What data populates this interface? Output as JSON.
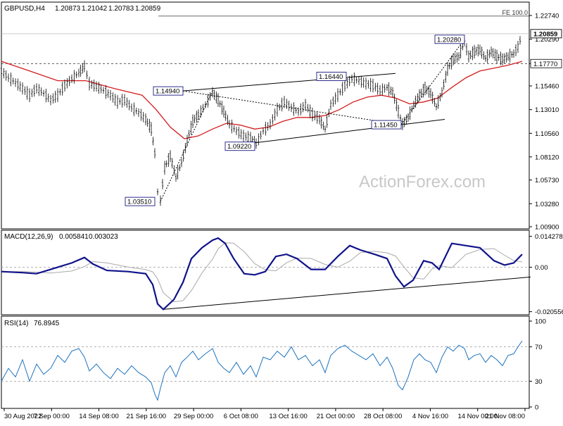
{
  "chart_data": [
    {
      "type": "line",
      "panel": "price",
      "header": {
        "symbol": "GBPUSD,H4",
        "open": "1.20873",
        "high": "1.21042",
        "low": "1.20783",
        "close": "1.20859"
      },
      "watermark": "ActionForex.com",
      "x_ticks": [
        "30 Aug 2022",
        "7 Sep 00:00",
        "14 Sep 08:00",
        "21 Sep 16:00",
        "29 Sep 00:00",
        "6 Oct 08:00",
        "13 Oct 16:00",
        "21 Oct 00:00",
        "28 Oct 08:00",
        "4 Nov 16:00",
        "14 Nov 00:00",
        "21 Nov 08:00"
      ],
      "y_ticks": [
        "1.22740",
        "1.20290",
        "1.17770",
        "1.15460",
        "1.13010",
        "1.10560",
        "1.08120",
        "1.05730",
        "1.03280",
        "1.00900"
      ],
      "ylim": [
        1.009,
        1.2274
      ],
      "current_price": "1.20859",
      "levels": [
        {
          "label": "FE 100.0",
          "value": 1.2268,
          "style": "solid"
        },
        {
          "label": "1.17770",
          "value": 1.1777,
          "style": "dashed"
        }
      ],
      "price_series": [
        {
          "t": 0,
          "v": 1.17
        },
        {
          "t": 10,
          "v": 1.163
        },
        {
          "t": 20,
          "v": 1.158
        },
        {
          "t": 30,
          "v": 1.152
        },
        {
          "t": 40,
          "v": 1.145
        },
        {
          "t": 50,
          "v": 1.152
        },
        {
          "t": 60,
          "v": 1.147
        },
        {
          "t": 70,
          "v": 1.14
        },
        {
          "t": 80,
          "v": 1.145
        },
        {
          "t": 90,
          "v": 1.155
        },
        {
          "t": 100,
          "v": 1.162
        },
        {
          "t": 110,
          "v": 1.168
        },
        {
          "t": 118,
          "v": 1.175
        },
        {
          "t": 125,
          "v": 1.157
        },
        {
          "t": 135,
          "v": 1.154
        },
        {
          "t": 145,
          "v": 1.15
        },
        {
          "t": 155,
          "v": 1.145
        },
        {
          "t": 165,
          "v": 1.138
        },
        {
          "t": 175,
          "v": 1.14
        },
        {
          "t": 185,
          "v": 1.132
        },
        {
          "t": 195,
          "v": 1.127
        },
        {
          "t": 205,
          "v": 1.12
        },
        {
          "t": 213,
          "v": 1.11
        },
        {
          "t": 218,
          "v": 1.085
        },
        {
          "t": 222,
          "v": 1.045
        },
        {
          "t": 226,
          "v": 1.036
        },
        {
          "t": 232,
          "v": 1.07
        },
        {
          "t": 240,
          "v": 1.082
        },
        {
          "t": 248,
          "v": 1.06
        },
        {
          "t": 256,
          "v": 1.075
        },
        {
          "t": 264,
          "v": 1.098
        },
        {
          "t": 272,
          "v": 1.118
        },
        {
          "t": 280,
          "v": 1.125
        },
        {
          "t": 290,
          "v": 1.135
        },
        {
          "t": 300,
          "v": 1.148
        },
        {
          "t": 308,
          "v": 1.14
        },
        {
          "t": 316,
          "v": 1.128
        },
        {
          "t": 324,
          "v": 1.115
        },
        {
          "t": 334,
          "v": 1.108
        },
        {
          "t": 344,
          "v": 1.103
        },
        {
          "t": 354,
          "v": 1.1
        },
        {
          "t": 362,
          "v": 1.095
        },
        {
          "t": 372,
          "v": 1.108
        },
        {
          "t": 382,
          "v": 1.115
        },
        {
          "t": 392,
          "v": 1.13
        },
        {
          "t": 402,
          "v": 1.138
        },
        {
          "t": 412,
          "v": 1.132
        },
        {
          "t": 422,
          "v": 1.128
        },
        {
          "t": 432,
          "v": 1.135
        },
        {
          "t": 442,
          "v": 1.125
        },
        {
          "t": 452,
          "v": 1.12
        },
        {
          "t": 460,
          "v": 1.11
        },
        {
          "t": 468,
          "v": 1.135
        },
        {
          "t": 478,
          "v": 1.145
        },
        {
          "t": 488,
          "v": 1.155
        },
        {
          "t": 498,
          "v": 1.162
        },
        {
          "t": 508,
          "v": 1.16
        },
        {
          "t": 518,
          "v": 1.157
        },
        {
          "t": 528,
          "v": 1.155
        },
        {
          "t": 538,
          "v": 1.15
        },
        {
          "t": 548,
          "v": 1.153
        },
        {
          "t": 556,
          "v": 1.148
        },
        {
          "t": 564,
          "v": 1.128
        },
        {
          "t": 570,
          "v": 1.115
        },
        {
          "t": 578,
          "v": 1.122
        },
        {
          "t": 586,
          "v": 1.135
        },
        {
          "t": 594,
          "v": 1.145
        },
        {
          "t": 602,
          "v": 1.152
        },
        {
          "t": 610,
          "v": 1.147
        },
        {
          "t": 618,
          "v": 1.133
        },
        {
          "t": 626,
          "v": 1.148
        },
        {
          "t": 634,
          "v": 1.172
        },
        {
          "t": 642,
          "v": 1.182
        },
        {
          "t": 650,
          "v": 1.185
        },
        {
          "t": 658,
          "v": 1.2
        },
        {
          "t": 664,
          "v": 1.185
        },
        {
          "t": 672,
          "v": 1.19
        },
        {
          "t": 680,
          "v": 1.192
        },
        {
          "t": 688,
          "v": 1.183
        },
        {
          "t": 696,
          "v": 1.19
        },
        {
          "t": 704,
          "v": 1.185
        },
        {
          "t": 712,
          "v": 1.182
        },
        {
          "t": 720,
          "v": 1.185
        },
        {
          "t": 728,
          "v": 1.188
        },
        {
          "t": 734,
          "v": 1.195
        },
        {
          "t": 740,
          "v": 1.2086
        }
      ],
      "moving_average": [
        {
          "t": 0,
          "v": 1.18
        },
        {
          "t": 40,
          "v": 1.17
        },
        {
          "t": 80,
          "v": 1.16
        },
        {
          "t": 120,
          "v": 1.16
        },
        {
          "t": 160,
          "v": 1.152
        },
        {
          "t": 200,
          "v": 1.145
        },
        {
          "t": 220,
          "v": 1.13
        },
        {
          "t": 240,
          "v": 1.112
        },
        {
          "t": 260,
          "v": 1.1
        },
        {
          "t": 280,
          "v": 1.103
        },
        {
          "t": 300,
          "v": 1.11
        },
        {
          "t": 320,
          "v": 1.116
        },
        {
          "t": 340,
          "v": 1.114
        },
        {
          "t": 360,
          "v": 1.11
        },
        {
          "t": 380,
          "v": 1.112
        },
        {
          "t": 400,
          "v": 1.118
        },
        {
          "t": 420,
          "v": 1.122
        },
        {
          "t": 440,
          "v": 1.122
        },
        {
          "t": 460,
          "v": 1.124
        },
        {
          "t": 480,
          "v": 1.13
        },
        {
          "t": 500,
          "v": 1.138
        },
        {
          "t": 520,
          "v": 1.143
        },
        {
          "t": 540,
          "v": 1.145
        },
        {
          "t": 560,
          "v": 1.142
        },
        {
          "t": 580,
          "v": 1.136
        },
        {
          "t": 600,
          "v": 1.138
        },
        {
          "t": 620,
          "v": 1.142
        },
        {
          "t": 640,
          "v": 1.153
        },
        {
          "t": 660,
          "v": 1.163
        },
        {
          "t": 680,
          "v": 1.17
        },
        {
          "t": 700,
          "v": 1.173
        },
        {
          "t": 720,
          "v": 1.176
        },
        {
          "t": 740,
          "v": 1.18
        }
      ],
      "trendlines": [
        {
          "from": {
            "t": 258,
            "v": 1.1494
          },
          "to": {
            "t": 560,
            "v": 1.1675
          },
          "style": "solid"
        },
        {
          "from": {
            "t": 320,
            "v": 1.0922
          },
          "to": {
            "t": 630,
            "v": 1.12
          },
          "style": "solid"
        },
        {
          "from": {
            "t": 258,
            "v": 1.1494
          },
          "to": {
            "t": 568,
            "v": 1.1145
          },
          "style": "dashed"
        },
        {
          "from": {
            "t": 226,
            "v": 1.0351
          },
          "to": {
            "t": 300,
            "v": 1.1494
          },
          "style": "dashed"
        },
        {
          "from": {
            "t": 568,
            "v": 1.1145
          },
          "to": {
            "t": 658,
            "v": 1.2028
          },
          "style": "dashed"
        }
      ],
      "annotations": [
        {
          "label": "1.14940",
          "t": 258,
          "v": 1.1494,
          "anchor": "right"
        },
        {
          "label": "1.16440",
          "t": 490,
          "v": 1.1644,
          "anchor": "right"
        },
        {
          "label": "1.09220",
          "t": 360,
          "v": 1.0922,
          "anchor": "right"
        },
        {
          "label": "1.11450",
          "t": 568,
          "v": 1.1145,
          "anchor": "right"
        },
        {
          "label": "1.03510",
          "t": 218,
          "v": 1.0351,
          "anchor": "right"
        },
        {
          "label": "1.20280",
          "t": 658,
          "v": 1.2028,
          "anchor": "right"
        }
      ]
    },
    {
      "type": "line",
      "panel": "macd",
      "header": {
        "name": "MACD(12,26,9)",
        "main": "0.005841",
        "signal": "0.003023"
      },
      "y_ticks": [
        "0.014278",
        "0.00",
        "-0.020556"
      ],
      "ylim": [
        -0.021,
        0.0145
      ],
      "zero_line": 0.0,
      "macd_series": [
        {
          "t": 0,
          "v": -0.002
        },
        {
          "t": 30,
          "v": -0.0025
        },
        {
          "t": 50,
          "v": -0.003
        },
        {
          "t": 70,
          "v": -0.001
        },
        {
          "t": 100,
          "v": 0.002
        },
        {
          "t": 118,
          "v": 0.0045
        },
        {
          "t": 130,
          "v": 0.0015
        },
        {
          "t": 150,
          "v": -0.0015
        },
        {
          "t": 180,
          "v": -0.002
        },
        {
          "t": 205,
          "v": -0.003
        },
        {
          "t": 215,
          "v": -0.008
        },
        {
          "t": 222,
          "v": -0.017
        },
        {
          "t": 230,
          "v": -0.0195
        },
        {
          "t": 245,
          "v": -0.015
        },
        {
          "t": 258,
          "v": -0.007
        },
        {
          "t": 270,
          "v": 0.004
        },
        {
          "t": 285,
          "v": 0.009
        },
        {
          "t": 300,
          "v": 0.0125
        },
        {
          "t": 308,
          "v": 0.0135
        },
        {
          "t": 318,
          "v": 0.011
        },
        {
          "t": 330,
          "v": 0.004
        },
        {
          "t": 345,
          "v": -0.003
        },
        {
          "t": 360,
          "v": -0.0035
        },
        {
          "t": 375,
          "v": -0.002
        },
        {
          "t": 390,
          "v": 0.005
        },
        {
          "t": 405,
          "v": 0.006
        },
        {
          "t": 420,
          "v": 0.004
        },
        {
          "t": 440,
          "v": -0.001
        },
        {
          "t": 460,
          "v": -0.001
        },
        {
          "t": 478,
          "v": 0.005
        },
        {
          "t": 495,
          "v": 0.01
        },
        {
          "t": 510,
          "v": 0.008
        },
        {
          "t": 530,
          "v": 0.006
        },
        {
          "t": 548,
          "v": 0.004
        },
        {
          "t": 560,
          "v": -0.004
        },
        {
          "t": 572,
          "v": -0.009
        },
        {
          "t": 585,
          "v": -0.006
        },
        {
          "t": 600,
          "v": 0.003
        },
        {
          "t": 612,
          "v": 0.002
        },
        {
          "t": 622,
          "v": -0.001
        },
        {
          "t": 640,
          "v": 0.011
        },
        {
          "t": 660,
          "v": 0.01
        },
        {
          "t": 680,
          "v": 0.009
        },
        {
          "t": 700,
          "v": 0.003
        },
        {
          "t": 715,
          "v": 0.001
        },
        {
          "t": 728,
          "v": 0.002
        },
        {
          "t": 740,
          "v": 0.006
        }
      ],
      "trendlines": [
        {
          "from": {
            "t": 230,
            "v": -0.0195
          },
          "to": {
            "t": 752,
            "v": -0.0045
          },
          "style": "solid"
        }
      ]
    },
    {
      "type": "line",
      "panel": "rsi",
      "header": {
        "name": "RSI(14)",
        "value": "76.8945"
      },
      "y_ticks": [
        "100",
        "70",
        "30",
        "0"
      ],
      "ylim": [
        0,
        100
      ],
      "levels": [
        70,
        30
      ],
      "rsi_series": [
        {
          "t": 0,
          "v": 30
        },
        {
          "t": 10,
          "v": 45
        },
        {
          "t": 20,
          "v": 35
        },
        {
          "t": 30,
          "v": 55
        },
        {
          "t": 40,
          "v": 30
        },
        {
          "t": 50,
          "v": 50
        },
        {
          "t": 60,
          "v": 38
        },
        {
          "t": 70,
          "v": 45
        },
        {
          "t": 80,
          "v": 60
        },
        {
          "t": 90,
          "v": 52
        },
        {
          "t": 100,
          "v": 65
        },
        {
          "t": 110,
          "v": 68
        },
        {
          "t": 118,
          "v": 58
        },
        {
          "t": 125,
          "v": 42
        },
        {
          "t": 135,
          "v": 50
        },
        {
          "t": 145,
          "v": 40
        },
        {
          "t": 155,
          "v": 33
        },
        {
          "t": 165,
          "v": 45
        },
        {
          "t": 175,
          "v": 38
        },
        {
          "t": 185,
          "v": 48
        },
        {
          "t": 195,
          "v": 40
        },
        {
          "t": 205,
          "v": 35
        },
        {
          "t": 213,
          "v": 28
        },
        {
          "t": 218,
          "v": 15
        },
        {
          "t": 222,
          "v": 8
        },
        {
          "t": 226,
          "v": 22
        },
        {
          "t": 232,
          "v": 40
        },
        {
          "t": 240,
          "v": 48
        },
        {
          "t": 248,
          "v": 35
        },
        {
          "t": 256,
          "v": 52
        },
        {
          "t": 264,
          "v": 58
        },
        {
          "t": 272,
          "v": 65
        },
        {
          "t": 280,
          "v": 55
        },
        {
          "t": 290,
          "v": 62
        },
        {
          "t": 300,
          "v": 68
        },
        {
          "t": 308,
          "v": 52
        },
        {
          "t": 316,
          "v": 45
        },
        {
          "t": 324,
          "v": 40
        },
        {
          "t": 334,
          "v": 52
        },
        {
          "t": 344,
          "v": 38
        },
        {
          "t": 354,
          "v": 48
        },
        {
          "t": 362,
          "v": 35
        },
        {
          "t": 372,
          "v": 58
        },
        {
          "t": 382,
          "v": 55
        },
        {
          "t": 392,
          "v": 65
        },
        {
          "t": 402,
          "v": 58
        },
        {
          "t": 412,
          "v": 70
        },
        {
          "t": 422,
          "v": 55
        },
        {
          "t": 432,
          "v": 60
        },
        {
          "t": 442,
          "v": 48
        },
        {
          "t": 452,
          "v": 55
        },
        {
          "t": 460,
          "v": 40
        },
        {
          "t": 468,
          "v": 60
        },
        {
          "t": 478,
          "v": 68
        },
        {
          "t": 488,
          "v": 72
        },
        {
          "t": 498,
          "v": 65
        },
        {
          "t": 508,
          "v": 60
        },
        {
          "t": 518,
          "v": 55
        },
        {
          "t": 528,
          "v": 62
        },
        {
          "t": 538,
          "v": 48
        },
        {
          "t": 548,
          "v": 58
        },
        {
          "t": 556,
          "v": 45
        },
        {
          "t": 564,
          "v": 25
        },
        {
          "t": 570,
          "v": 20
        },
        {
          "t": 578,
          "v": 35
        },
        {
          "t": 586,
          "v": 55
        },
        {
          "t": 594,
          "v": 62
        },
        {
          "t": 602,
          "v": 55
        },
        {
          "t": 610,
          "v": 52
        },
        {
          "t": 618,
          "v": 40
        },
        {
          "t": 626,
          "v": 58
        },
        {
          "t": 634,
          "v": 70
        },
        {
          "t": 642,
          "v": 65
        },
        {
          "t": 650,
          "v": 72
        },
        {
          "t": 658,
          "v": 68
        },
        {
          "t": 664,
          "v": 55
        },
        {
          "t": 672,
          "v": 60
        },
        {
          "t": 680,
          "v": 62
        },
        {
          "t": 688,
          "v": 52
        },
        {
          "t": 696,
          "v": 60
        },
        {
          "t": 704,
          "v": 55
        },
        {
          "t": 712,
          "v": 48
        },
        {
          "t": 720,
          "v": 60
        },
        {
          "t": 728,
          "v": 62
        },
        {
          "t": 734,
          "v": 70
        },
        {
          "t": 740,
          "v": 77
        }
      ]
    }
  ],
  "colors": {
    "price": "#000000",
    "moving_average": "#d41c1c",
    "macd_main": "#10138a",
    "macd_signal": "#aaaaaa",
    "rsi": "#1e73be",
    "grid_level": "#999999",
    "annotation_border": "#1a1a80",
    "watermark": "#c8c8c8"
  }
}
